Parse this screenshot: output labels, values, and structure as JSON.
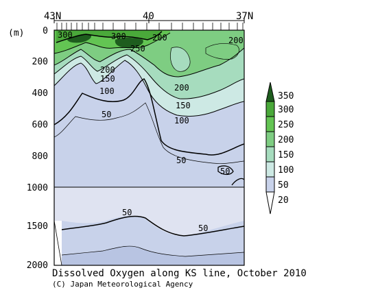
{
  "chart_data": {
    "type": "contour",
    "title": "Dissolved Oxygen along KS line, October 2010",
    "credit": "(C) Japan Meteorological Agency",
    "xlabel": "",
    "ylabel": "(m)",
    "x_ticks": [
      "43N",
      "40",
      "37N"
    ],
    "x_range": [
      "43N",
      "37N"
    ],
    "y_ticks_upper": [
      "0",
      "200",
      "400",
      "600",
      "800",
      "1000"
    ],
    "y_ticks_lower": [
      "1500",
      "2000"
    ],
    "y_range": [
      0,
      2000
    ],
    "y_scale_break": 1000,
    "grid": false,
    "legend": {
      "type": "colorbar",
      "placement": "right",
      "levels": [
        "20",
        "50",
        "100",
        "150",
        "200",
        "250",
        "300",
        "350"
      ],
      "colors": [
        "#ffffff",
        "#c8d2ea",
        "#cde9e4",
        "#a6dcbe",
        "#7ecd82",
        "#63c453",
        "#4aa93a",
        "#1e5d1e"
      ]
    },
    "contour_labels": [
      {
        "text": "300",
        "lat": 42.8,
        "depth": 20
      },
      {
        "text": "300",
        "lat": 41.3,
        "depth": 20
      },
      {
        "text": "250",
        "lat": 40.7,
        "depth": 65
      },
      {
        "text": "200",
        "lat": 39.8,
        "depth": 30
      },
      {
        "text": "200",
        "lat": 37.1,
        "depth": 40
      },
      {
        "text": "200",
        "lat": 41.6,
        "depth": 220
      },
      {
        "text": "150",
        "lat": 41.8,
        "depth": 275
      },
      {
        "text": "100",
        "lat": 41.7,
        "depth": 350
      },
      {
        "text": "200",
        "lat": 38.5,
        "depth": 320
      },
      {
        "text": "150",
        "lat": 38.6,
        "depth": 430
      },
      {
        "text": "100",
        "lat": 38.7,
        "depth": 520
      },
      {
        "text": "50",
        "lat": 41.5,
        "depth": 480
      },
      {
        "text": "50",
        "lat": 38.5,
        "depth": 825
      },
      {
        "text": "50",
        "lat": 37.4,
        "depth": 915
      },
      {
        "text": "50",
        "lat": 40.8,
        "depth": 1330
      },
      {
        "text": "50",
        "lat": 38.2,
        "depth": 1500
      }
    ]
  }
}
